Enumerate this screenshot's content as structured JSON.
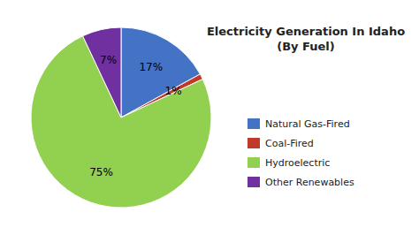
{
  "chart_data": {
    "type": "pie",
    "title": "Electricity Generation In Idaho\n(By Fuel)",
    "categories": [
      "Natural Gas-Fired",
      "Coal-Fired",
      "Hydroelectric",
      "Other Renewables"
    ],
    "values": [
      17,
      1,
      75,
      7
    ],
    "value_labels": [
      "17%",
      "1%",
      "75%",
      "7%"
    ],
    "colors": [
      "#4472C4",
      "#C0392B",
      "#92D050",
      "#7030A0"
    ],
    "data_labels": true,
    "legend": "right"
  }
}
